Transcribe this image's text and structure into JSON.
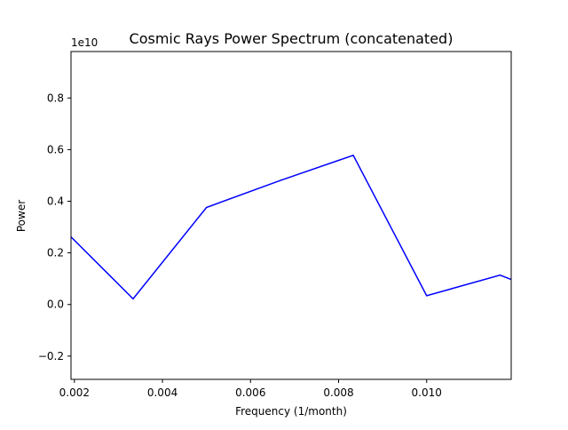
{
  "chart_data": {
    "type": "line",
    "title": "Cosmic Rays Power Spectrum (concatenated)",
    "xlabel": "Frequency (1/month)",
    "ylabel": "Power",
    "y_offset_label": "1e10",
    "xlim": [
      0.001923,
      0.01192
    ],
    "ylim": [
      -0.29,
      0.98
    ],
    "x_ticks": [
      0.002,
      0.004,
      0.006,
      0.008,
      0.01
    ],
    "x_tick_labels": [
      "0.002",
      "0.004",
      "0.006",
      "0.008",
      "0.010"
    ],
    "y_ticks": [
      -0.2,
      0.0,
      0.2,
      0.4,
      0.6,
      0.8
    ],
    "y_tick_labels": [
      "−0.2",
      "0.0",
      "0.2",
      "0.4",
      "0.6",
      "0.8"
    ],
    "grid": false,
    "series": [
      {
        "color": "#0000ff",
        "x": [
          0.001923,
          0.003333,
          0.005,
          0.006667,
          0.008333,
          0.01,
          0.011667,
          0.01192
        ],
        "y": [
          0.262,
          0.022,
          0.376,
          0.48,
          0.578,
          0.034,
          0.114,
          0.097
        ]
      }
    ]
  }
}
